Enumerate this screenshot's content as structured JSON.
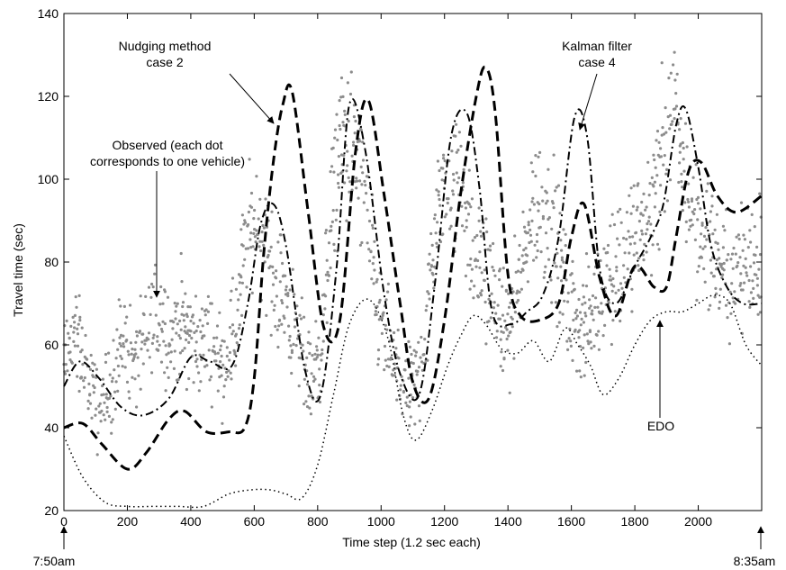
{
  "chart_data": {
    "type": "line",
    "xlabel": "Time step (1.2 sec each)",
    "ylabel": "Travel time (sec)",
    "xlim": [
      0,
      2200
    ],
    "ylim": [
      20,
      140
    ],
    "xticks": [
      0,
      200,
      400,
      600,
      800,
      1000,
      1200,
      1400,
      1600,
      1800,
      2000
    ],
    "yticks": [
      20,
      40,
      60,
      80,
      100,
      120,
      140
    ],
    "xtick_labels": [
      "0",
      "200",
      "400",
      "600",
      "800",
      "1000",
      "1200",
      "1400",
      "1600",
      "1800",
      "2000"
    ],
    "ytick_labels": [
      "20",
      "40",
      "60",
      "80",
      "100",
      "120",
      "140"
    ],
    "grid": false,
    "series": [
      {
        "name": "Nudging method case 2",
        "style": "dashed",
        "color": "#000000",
        "x": [
          0,
          60,
          120,
          200,
          260,
          330,
          380,
          450,
          520,
          570,
          600,
          630,
          660,
          690,
          720,
          770,
          820,
          870,
          920,
          960,
          1010,
          1060,
          1100,
          1150,
          1200,
          1250,
          1300,
          1330,
          1360,
          1400,
          1440,
          1500,
          1560,
          1600,
          1640,
          1690,
          1740,
          1800,
          1860,
          1900,
          1930,
          1970,
          2010,
          2060,
          2120,
          2200
        ],
        "y": [
          40,
          41,
          36,
          30,
          34,
          42,
          44,
          39,
          39,
          40,
          52,
          82,
          104,
          118,
          121,
          92,
          64,
          66,
          107,
          119,
          96,
          70,
          51,
          47,
          66,
          96,
          120,
          127,
          116,
          77,
          67,
          66,
          70,
          86,
          94,
          76,
          67,
          79,
          74,
          74,
          86,
          102,
          104,
          96,
          92,
          96
        ]
      },
      {
        "name": "Kalman filter case 4",
        "style": "dashdot",
        "color": "#000000",
        "x": [
          0,
          50,
          110,
          180,
          250,
          330,
          400,
          460,
          530,
          580,
          620,
          660,
          700,
          760,
          810,
          860,
          900,
          950,
          1010,
          1060,
          1120,
          1170,
          1220,
          1270,
          1310,
          1350,
          1410,
          1460,
          1510,
          1560,
          1610,
          1650,
          1690,
          1740,
          1800,
          1850,
          1890,
          1930,
          1960,
          2000,
          2040,
          2090,
          2140,
          2200
        ],
        "y": [
          50,
          56,
          52,
          45,
          43,
          47,
          57,
          56,
          55,
          70,
          89,
          94,
          84,
          54,
          48,
          79,
          118,
          107,
          72,
          53,
          48,
          75,
          110,
          116,
          98,
          68,
          65,
          68,
          72,
          86,
          115,
          110,
          78,
          70,
          79,
          86,
          94,
          113,
          117,
          103,
          84,
          74,
          70,
          70
        ]
      },
      {
        "name": "EDO",
        "style": "dotted",
        "color": "#000000",
        "x": [
          0,
          60,
          130,
          200,
          280,
          360,
          440,
          520,
          590,
          650,
          700,
          750,
          800,
          850,
          900,
          960,
          1020,
          1070,
          1110,
          1160,
          1210,
          1250,
          1290,
          1330,
          1380,
          1430,
          1480,
          1530,
          1580,
          1620,
          1660,
          1700,
          1750,
          1800,
          1850,
          1900,
          1950,
          2000,
          2050,
          2100,
          2150,
          2200
        ],
        "y": [
          38,
          28,
          22,
          21,
          21,
          21,
          21,
          24,
          25,
          25,
          24,
          23,
          31,
          48,
          65,
          71,
          62,
          43,
          37,
          44,
          55,
          62,
          67,
          65,
          59,
          58,
          61,
          56,
          64,
          60,
          55,
          48,
          52,
          60,
          66,
          68,
          68,
          70,
          72,
          70,
          60,
          55
        ]
      }
    ],
    "scatter": {
      "name": "Observed",
      "color": "#8c8c8c",
      "bands": [
        {
          "x": 0,
          "y": 55
        },
        {
          "x": 30,
          "y": 63
        },
        {
          "x": 50,
          "y": 60
        },
        {
          "x": 80,
          "y": 50
        },
        {
          "x": 110,
          "y": 43
        },
        {
          "x": 140,
          "y": 48
        },
        {
          "x": 170,
          "y": 58
        },
        {
          "x": 190,
          "y": 62
        },
        {
          "x": 220,
          "y": 56
        },
        {
          "x": 250,
          "y": 58
        },
        {
          "x": 280,
          "y": 64
        },
        {
          "x": 310,
          "y": 67
        },
        {
          "x": 340,
          "y": 62
        },
        {
          "x": 370,
          "y": 66
        },
        {
          "x": 400,
          "y": 62
        },
        {
          "x": 430,
          "y": 60
        },
        {
          "x": 470,
          "y": 61
        },
        {
          "x": 500,
          "y": 55
        },
        {
          "x": 540,
          "y": 63
        },
        {
          "x": 570,
          "y": 82
        },
        {
          "x": 600,
          "y": 90
        },
        {
          "x": 630,
          "y": 86
        },
        {
          "x": 660,
          "y": 74
        },
        {
          "x": 690,
          "y": 74
        },
        {
          "x": 720,
          "y": 64
        },
        {
          "x": 750,
          "y": 58
        },
        {
          "x": 780,
          "y": 52
        },
        {
          "x": 810,
          "y": 58
        },
        {
          "x": 840,
          "y": 88
        },
        {
          "x": 870,
          "y": 110
        },
        {
          "x": 900,
          "y": 108
        },
        {
          "x": 930,
          "y": 102
        },
        {
          "x": 960,
          "y": 88
        },
        {
          "x": 990,
          "y": 68
        },
        {
          "x": 1020,
          "y": 60
        },
        {
          "x": 1050,
          "y": 52
        },
        {
          "x": 1080,
          "y": 49
        },
        {
          "x": 1110,
          "y": 50
        },
        {
          "x": 1140,
          "y": 62
        },
        {
          "x": 1170,
          "y": 88
        },
        {
          "x": 1200,
          "y": 100
        },
        {
          "x": 1230,
          "y": 98
        },
        {
          "x": 1260,
          "y": 100
        },
        {
          "x": 1290,
          "y": 78
        },
        {
          "x": 1320,
          "y": 82
        },
        {
          "x": 1350,
          "y": 72
        },
        {
          "x": 1380,
          "y": 64
        },
        {
          "x": 1410,
          "y": 66
        },
        {
          "x": 1440,
          "y": 76
        },
        {
          "x": 1470,
          "y": 92
        },
        {
          "x": 1500,
          "y": 94
        },
        {
          "x": 1530,
          "y": 92
        },
        {
          "x": 1560,
          "y": 82
        },
        {
          "x": 1590,
          "y": 70
        },
        {
          "x": 1620,
          "y": 66
        },
        {
          "x": 1650,
          "y": 66
        },
        {
          "x": 1680,
          "y": 70
        },
        {
          "x": 1710,
          "y": 76
        },
        {
          "x": 1740,
          "y": 80
        },
        {
          "x": 1770,
          "y": 80
        },
        {
          "x": 1800,
          "y": 86
        },
        {
          "x": 1830,
          "y": 88
        },
        {
          "x": 1860,
          "y": 96
        },
        {
          "x": 1890,
          "y": 108
        },
        {
          "x": 1920,
          "y": 115
        },
        {
          "x": 1950,
          "y": 104
        },
        {
          "x": 1980,
          "y": 92
        },
        {
          "x": 2010,
          "y": 86
        },
        {
          "x": 2040,
          "y": 86
        },
        {
          "x": 2070,
          "y": 78
        },
        {
          "x": 2100,
          "y": 76
        },
        {
          "x": 2130,
          "y": 78
        },
        {
          "x": 2160,
          "y": 80
        },
        {
          "x": 2200,
          "y": 82
        }
      ]
    },
    "annotations": [
      {
        "id": "nudging",
        "lines": [
          "Nudging method",
          "case 2"
        ]
      },
      {
        "id": "kalman",
        "lines": [
          "Kalman filter",
          "case 4"
        ]
      },
      {
        "id": "observed",
        "lines": [
          "Observed (each dot",
          "corresponds to one vehicle)"
        ]
      },
      {
        "id": "edo",
        "lines": [
          "EDO"
        ]
      },
      {
        "id": "start_time",
        "lines": [
          "7:50am"
        ]
      },
      {
        "id": "end_time",
        "lines": [
          "8:35am"
        ]
      }
    ]
  }
}
